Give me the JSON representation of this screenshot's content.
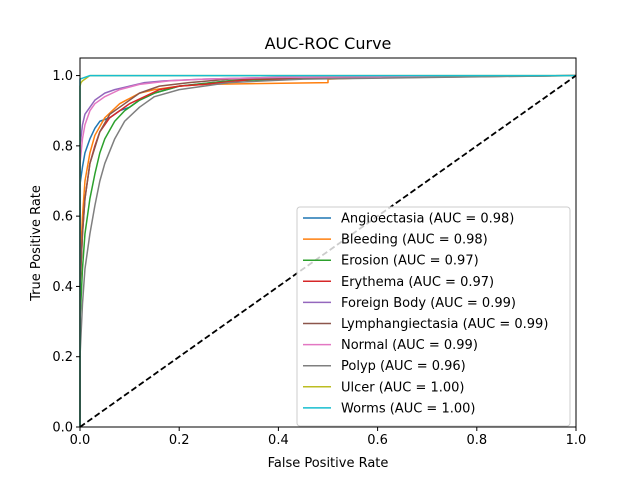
{
  "chart_data": {
    "type": "line",
    "title": "AUC-ROC Curve",
    "xlabel": "False Positive Rate",
    "ylabel": "True Positive Rate",
    "xlim": [
      0.0,
      1.0
    ],
    "ylim": [
      0.0,
      1.05
    ],
    "xticks": [
      "0.0",
      "0.2",
      "0.4",
      "0.6",
      "0.8",
      "1.0"
    ],
    "yticks": [
      "0.0",
      "0.2",
      "0.4",
      "0.6",
      "0.8",
      "1.0"
    ],
    "grid": false,
    "legend_position": "lower-right",
    "series": [
      {
        "name": "Angioectasia (AUC = 0.98)",
        "color": "#1f77b4",
        "x": [
          0,
          0,
          0.005,
          0.01,
          0.02,
          0.03,
          0.04,
          0.06,
          0.08,
          0.1,
          0.12,
          0.15,
          0.2,
          0.3,
          0.5,
          1.0
        ],
        "y": [
          0,
          0.69,
          0.74,
          0.78,
          0.82,
          0.85,
          0.87,
          0.88,
          0.9,
          0.91,
          0.93,
          0.95,
          0.97,
          0.985,
          0.995,
          1.0
        ]
      },
      {
        "name": "Bleeding (AUC = 0.98)",
        "color": "#ff7f0e",
        "x": [
          0,
          0,
          0.005,
          0.01,
          0.02,
          0.03,
          0.05,
          0.08,
          0.12,
          0.15,
          0.2,
          0.25,
          0.5,
          0.5,
          0.6,
          1.0
        ],
        "y": [
          0,
          0.45,
          0.6,
          0.7,
          0.78,
          0.83,
          0.88,
          0.92,
          0.95,
          0.96,
          0.97,
          0.975,
          0.98,
          0.99,
          0.995,
          1.0
        ]
      },
      {
        "name": "Erosion (AUC = 0.97)",
        "color": "#2ca02c",
        "x": [
          0,
          0,
          0.005,
          0.01,
          0.02,
          0.03,
          0.04,
          0.05,
          0.07,
          0.09,
          0.12,
          0.15,
          0.2,
          0.3,
          0.5,
          1.0
        ],
        "y": [
          0,
          0.3,
          0.45,
          0.55,
          0.65,
          0.72,
          0.78,
          0.82,
          0.87,
          0.9,
          0.93,
          0.95,
          0.97,
          0.985,
          0.995,
          1.0
        ]
      },
      {
        "name": "Erythema (AUC = 0.97)",
        "color": "#d62728",
        "x": [
          0,
          0,
          0.005,
          0.01,
          0.02,
          0.03,
          0.04,
          0.06,
          0.08,
          0.1,
          0.13,
          0.16,
          0.2,
          0.25,
          0.35,
          1.0
        ],
        "y": [
          0,
          0.4,
          0.55,
          0.65,
          0.75,
          0.8,
          0.84,
          0.88,
          0.9,
          0.92,
          0.94,
          0.96,
          0.97,
          0.975,
          0.99,
          1.0
        ]
      },
      {
        "name": "Foreign Body (AUC = 0.99)",
        "color": "#9467bd",
        "x": [
          0,
          0,
          0.005,
          0.01,
          0.02,
          0.03,
          0.05,
          0.07,
          0.1,
          0.13,
          0.17,
          0.25,
          0.4,
          1.0
        ],
        "y": [
          0,
          0.8,
          0.86,
          0.89,
          0.91,
          0.93,
          0.95,
          0.96,
          0.97,
          0.98,
          0.985,
          0.99,
          0.995,
          1.0
        ]
      },
      {
        "name": "Lymphangiectasia (AUC = 0.99)",
        "color": "#8c564b",
        "x": [
          0,
          0,
          0.005,
          0.01,
          0.02,
          0.04,
          0.06,
          0.09,
          0.12,
          0.16,
          0.22,
          0.3,
          0.5,
          1.0
        ],
        "y": [
          0,
          0.4,
          0.55,
          0.65,
          0.75,
          0.84,
          0.89,
          0.92,
          0.95,
          0.97,
          0.98,
          0.99,
          0.995,
          1.0
        ]
      },
      {
        "name": "Normal (AUC = 0.99)",
        "color": "#e377c2",
        "x": [
          0,
          0,
          0.005,
          0.01,
          0.02,
          0.03,
          0.05,
          0.08,
          0.12,
          0.18,
          0.25,
          0.4,
          1.0
        ],
        "y": [
          0,
          0.75,
          0.82,
          0.86,
          0.9,
          0.92,
          0.94,
          0.96,
          0.975,
          0.985,
          0.99,
          0.995,
          1.0
        ]
      },
      {
        "name": "Polyp (AUC = 0.96)",
        "color": "#7f7f7f",
        "x": [
          0,
          0,
          0.005,
          0.01,
          0.02,
          0.03,
          0.04,
          0.05,
          0.07,
          0.09,
          0.12,
          0.15,
          0.2,
          0.3,
          0.45,
          1.0
        ],
        "y": [
          0,
          0.2,
          0.35,
          0.45,
          0.55,
          0.63,
          0.7,
          0.75,
          0.82,
          0.87,
          0.91,
          0.94,
          0.96,
          0.98,
          0.99,
          1.0
        ]
      },
      {
        "name": "Ulcer (AUC = 1.00)",
        "color": "#bcbd22",
        "x": [
          0,
          0,
          0.002,
          0.005,
          0.01,
          0.02,
          1.0
        ],
        "y": [
          0,
          0.97,
          0.98,
          0.985,
          0.99,
          1.0,
          1.0
        ]
      },
      {
        "name": "Worms (AUC = 1.00)",
        "color": "#17becf",
        "x": [
          0,
          0,
          0.01,
          0.02,
          0.05,
          1.0
        ],
        "y": [
          0,
          0.99,
          0.995,
          1.0,
          1.0,
          1.0
        ]
      }
    ],
    "reference_line": {
      "x": [
        0,
        1
      ],
      "y": [
        0,
        1
      ],
      "color": "#000000",
      "style": "dashed"
    }
  }
}
